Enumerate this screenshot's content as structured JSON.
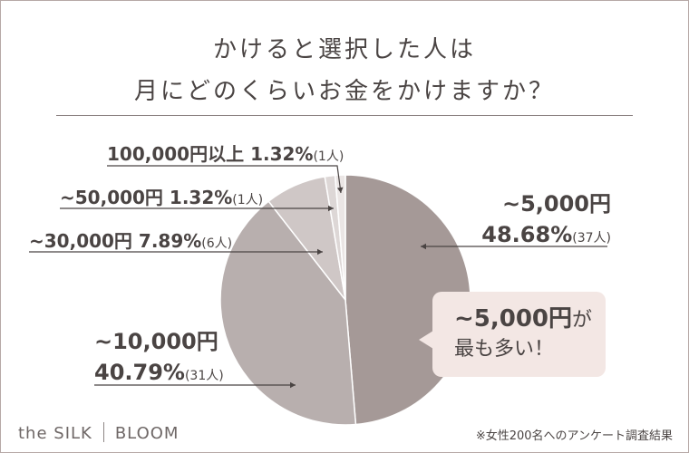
{
  "title": {
    "line1": "かけると選択した人は",
    "line2": "月にどのくらいお金をかけますか？"
  },
  "chart_data": {
    "type": "pie",
    "categories": [
      "~5,000円",
      "~10,000円",
      "~30,000円",
      "~50,000円",
      "100,000円以上"
    ],
    "values": [
      48.68,
      40.79,
      7.89,
      1.32,
      1.32
    ],
    "counts": [
      "(37人)",
      "(31人)",
      "(6人)",
      "(1人)",
      "(1人)"
    ],
    "value_labels": [
      "48.68%",
      "40.79%",
      "7.89%",
      "1.32%",
      "1.32%"
    ],
    "colors": [
      "#a59997",
      "#b8afae",
      "#cfc7c6",
      "#ddd7d6",
      "#ebe6e5"
    ]
  },
  "callout": {
    "line1_big": "~5,000円",
    "line1_small": "が",
    "line2": "最も多い！"
  },
  "brand": {
    "left": "the SILK",
    "right": "BLOOM"
  },
  "footnote": "※女性200名へのアンケート調査結果"
}
